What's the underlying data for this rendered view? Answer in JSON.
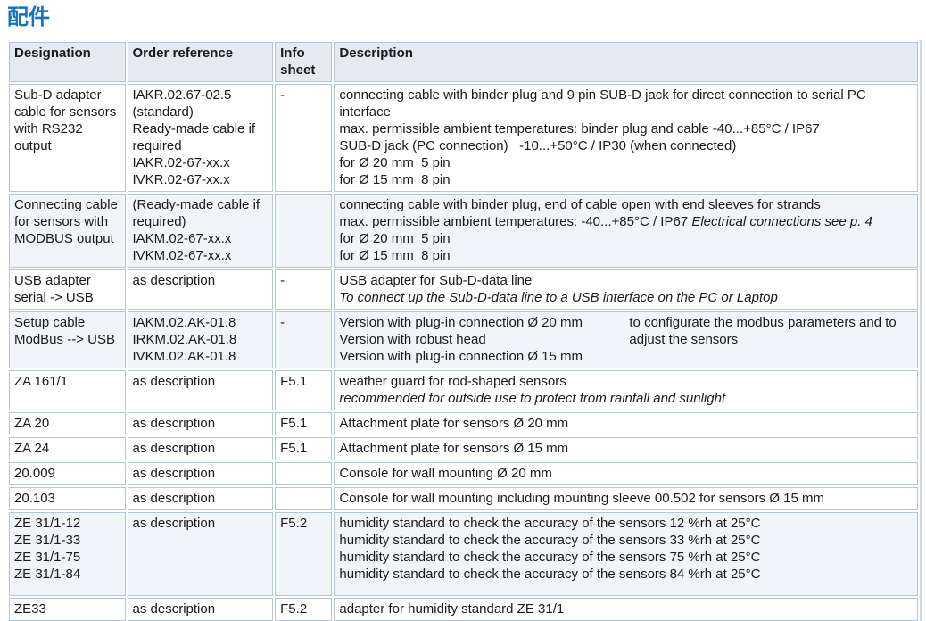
{
  "page": {
    "title": "配件"
  },
  "colors": {
    "accent_blue": "#1272c3",
    "table_border": "#b6c6da",
    "header_bg": "#e4eaf2",
    "shaded_row_bg": "#f1f4f8"
  },
  "table": {
    "headers": [
      "Designation",
      "Order reference",
      "Info sheet",
      "Description"
    ],
    "rows": [
      {
        "designation": [
          "Sub-D adapter cable for sensors with RS232 output"
        ],
        "order_reference": [
          "IAKR.02.67-02.5 (standard)",
          "Ready-made cable if required",
          "IAKR.02-67-xx.x",
          "IVKR.02-67-xx.x"
        ],
        "info_sheet": "-",
        "shaded": false,
        "description": [
          [
            {
              "text": "connecting cable with binder plug and 9 pin SUB-D jack for direct connection to serial PC interface",
              "italic": false
            }
          ],
          [
            {
              "text": "max. permissible ambient temperatures: binder plug and cable -40...+85°C / IP67",
              "italic": false
            }
          ],
          [
            {
              "text": "SUB-D jack (PC connection)   -10...+50°C / IP30 (when connected)",
              "italic": false
            }
          ],
          [
            {
              "text": "for Ø 20 mm  5 pin",
              "italic": false
            }
          ],
          [
            {
              "text": "for Ø 15 mm  8 pin",
              "italic": false
            }
          ]
        ]
      },
      {
        "designation": [
          "Connecting cable for sensors with MODBUS output"
        ],
        "order_reference": [
          "(Ready-made cable if required)",
          "IAKM.02-67-xx.x",
          "IVKM.02-67-xx.x"
        ],
        "info_sheet": "",
        "shaded": true,
        "description": [
          [
            {
              "text": "connecting cable with binder plug, end of cable open with end sleeves for strands",
              "italic": false
            }
          ],
          [
            {
              "text": "max. permissible ambient temperatures: -40...+85°C / IP67 ",
              "italic": false
            },
            {
              "text": "Electrical connections see p. 4",
              "italic": true
            }
          ],
          [
            {
              "text": "for Ø 20 mm  5 pin",
              "italic": false
            }
          ],
          [
            {
              "text": "for Ø 15 mm  8 pin",
              "italic": false
            }
          ]
        ]
      },
      {
        "designation": [
          "USB adapter serial -> USB"
        ],
        "order_reference": [
          "as description"
        ],
        "info_sheet": "-",
        "shaded": false,
        "description": [
          [
            {
              "text": "USB adapter for Sub-D-data line",
              "italic": false
            }
          ],
          [
            {
              "text": "To connect up the Sub-D-data line to a USB interface on the PC or Laptop",
              "italic": true
            }
          ]
        ]
      },
      {
        "designation": [
          "Setup cable ModBus --> USB"
        ],
        "order_reference": [
          "IAKM.02.AK-01.8",
          "IRKM.02.AK-01.8",
          "IVKM.02.AK-01.8"
        ],
        "info_sheet": "-",
        "shaded": true,
        "description_split": {
          "left": [
            [
              {
                "text": "Version with plug-in connection Ø 20 mm",
                "italic": false
              }
            ],
            [
              {
                "text": "Version with robust head",
                "italic": false
              }
            ],
            [
              {
                "text": "Version with plug-in connection Ø 15 mm",
                "italic": false
              }
            ]
          ],
          "right": [
            [
              {
                "text": "to configurate the modbus parameters and to adjust the sensors",
                "italic": false
              }
            ]
          ]
        }
      },
      {
        "designation": [
          "ZA 161/1"
        ],
        "order_reference": [
          "as description"
        ],
        "info_sheet": "F5.1",
        "shaded": false,
        "description": [
          [
            {
              "text": "weather guard for rod-shaped sensors",
              "italic": false
            }
          ],
          [
            {
              "text": "recommended for outside use to protect from rainfall and sunlight",
              "italic": true
            }
          ]
        ]
      },
      {
        "designation": [
          "ZA 20"
        ],
        "order_reference": [
          "as description"
        ],
        "info_sheet": "F5.1",
        "shaded": false,
        "description": [
          [
            {
              "text": "Attachment plate for sensors Ø 20 mm",
              "italic": false
            }
          ]
        ]
      },
      {
        "designation": [
          "ZA 24"
        ],
        "order_reference": [
          "as description"
        ],
        "info_sheet": "F5.1",
        "shaded": false,
        "description": [
          [
            {
              "text": "Attachment plate for sensors Ø 15 mm",
              "italic": false
            }
          ]
        ]
      },
      {
        "designation": [
          "20.009"
        ],
        "order_reference": [
          "as description"
        ],
        "info_sheet": "",
        "shaded": false,
        "description": [
          [
            {
              "text": "Console for wall mounting Ø 20 mm",
              "italic": false
            }
          ]
        ]
      },
      {
        "designation": [
          "20.103"
        ],
        "order_reference": [
          "as description"
        ],
        "info_sheet": "",
        "shaded": false,
        "description": [
          [
            {
              "text": "Console for wall mounting including mounting sleeve 00.502 for sensors Ø 15 mm",
              "italic": false
            }
          ]
        ]
      },
      {
        "designation": [
          "ZE 31/1-12",
          "ZE 31/1-33",
          "ZE 31/1-75",
          "ZE 31/1-84"
        ],
        "order_reference": [
          "as description"
        ],
        "info_sheet": "F5.2",
        "shaded": true,
        "description": [
          [
            {
              "text": "humidity standard to check the accuracy of the sensors 12 %rh at 25°C",
              "italic": false
            }
          ],
          [
            {
              "text": "humidity standard to check the accuracy of the sensors 33 %rh at 25°C",
              "italic": false
            }
          ],
          [
            {
              "text": "humidity standard to check the accuracy of the sensors 75 %rh at 25°C",
              "italic": false
            }
          ],
          [
            {
              "text": "humidity standard to check the accuracy of the sensors 84 %rh at 25°C",
              "italic": false
            }
          ]
        ]
      },
      {
        "designation": [
          "ZE33"
        ],
        "order_reference": [
          "as description"
        ],
        "info_sheet": "F5.2",
        "shaded": false,
        "description": [
          [
            {
              "text": "adapter for humidity standard ZE 31/1",
              "italic": false
            }
          ]
        ]
      }
    ]
  }
}
